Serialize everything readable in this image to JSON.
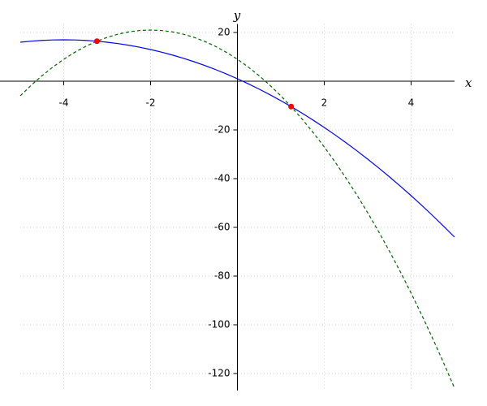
{
  "chart_data": {
    "type": "line",
    "x_label": "x",
    "y_label": "y",
    "x": [
      -5,
      -4.75,
      -4.5,
      -4.25,
      -4,
      -3.75,
      -3.5,
      -3.25,
      -3,
      -2.75,
      -2.5,
      -2.25,
      -2,
      -1.75,
      -1.5,
      -1.25,
      -1,
      -0.75,
      -0.5,
      -0.25,
      0,
      0.25,
      0.5,
      0.75,
      1,
      1.25,
      1.5,
      1.75,
      2,
      2.25,
      2.5,
      2.75,
      3,
      3.25,
      3.5,
      3.75,
      4,
      4.25,
      4.5,
      4.75,
      5
    ],
    "series": [
      {
        "color": "#0000ff",
        "style": "solid",
        "values": [
          16,
          16.4375,
          16.75,
          16.9375,
          17,
          16.9375,
          16.75,
          16.4375,
          16,
          15.4375,
          14.75,
          13.9375,
          13,
          11.9375,
          10.75,
          9.4375,
          8,
          6.4375,
          4.75,
          2.9375,
          1,
          -1.0625,
          -3.25,
          -5.5625,
          -8,
          -10.5625,
          -13.25,
          -16.0625,
          -19,
          -22.0625,
          -25.25,
          -28.5625,
          -32,
          -35.5625,
          -39.25,
          -43.0625,
          -47,
          -51.0625,
          -55.25,
          -59.5625,
          -64
        ]
      },
      {
        "color": "#006400",
        "style": "dashed",
        "values": [
          -6,
          -1.6875,
          2.25,
          5.8125,
          9,
          11.8125,
          14.25,
          16.3125,
          18,
          19.3125,
          20.25,
          20.8125,
          21,
          20.8125,
          20.25,
          19.3125,
          18,
          16.3125,
          14.25,
          11.8125,
          9,
          5.8125,
          2.25,
          -1.6875,
          -6,
          -10.6875,
          -15.75,
          -21.1875,
          -27,
          -33.1875,
          -39.75,
          -46.6875,
          -54,
          -61.6875,
          -69.75,
          -78.1875,
          -87,
          -96.1875,
          -105.75,
          -115.6875,
          -126
        ]
      }
    ],
    "points": {
      "color": "#ff0000",
      "x": [
        -3.236,
        1.236
      ],
      "values": [
        16.42,
        -10.42
      ]
    },
    "xlim": [
      -5,
      5
    ],
    "ylim": [
      -127,
      23.5
    ],
    "xticks": [
      -4,
      -2,
      2,
      4
    ],
    "yticks": [
      -120,
      -100,
      -80,
      -60,
      -40,
      -20,
      20
    ],
    "grid": true
  }
}
